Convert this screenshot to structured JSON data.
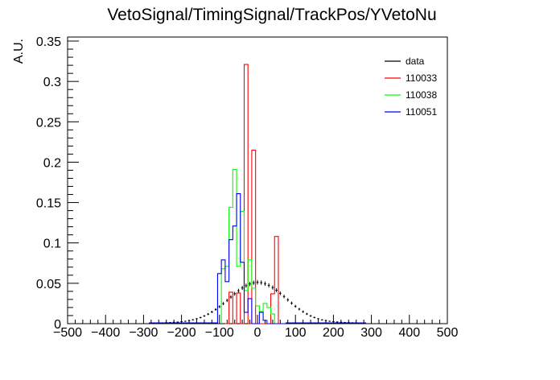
{
  "chart_data": {
    "type": "histogram",
    "title": "VetoSignal/TimingSignal/TrackPos/YVetoNu",
    "xlabel": "",
    "ylabel": "A.U.",
    "xlim": [
      -500,
      500
    ],
    "ylim": [
      0,
      0.355
    ],
    "bin_width": 10,
    "x_ticks": [
      -500,
      -400,
      -300,
      -200,
      -100,
      0,
      100,
      200,
      300,
      400,
      500
    ],
    "x_tick_labels": [
      "−500",
      "−400",
      "−300",
      "−200",
      "−100",
      "0",
      "100",
      "200",
      "300",
      "400",
      "500"
    ],
    "y_ticks": [
      0,
      0.05,
      0.1,
      0.15,
      0.2,
      0.25,
      0.3,
      0.35
    ],
    "y_tick_labels": [
      "0",
      "0.05",
      "0.1",
      "0.15",
      "0.2",
      "0.25",
      "0.3",
      "0.35"
    ],
    "legend_position": "top-right",
    "series": [
      {
        "name": "data",
        "color": "#000000",
        "style": "error-bars",
        "x": [
          -270,
          -260,
          -250,
          -240,
          -230,
          -220,
          -210,
          -200,
          -190,
          -180,
          -170,
          -160,
          -150,
          -140,
          -130,
          -120,
          -110,
          -100,
          -90,
          -80,
          -70,
          -60,
          -50,
          -40,
          -30,
          -20,
          -10,
          0,
          10,
          20,
          30,
          40,
          50,
          60,
          70,
          80,
          90,
          100,
          110,
          120,
          130,
          140,
          150,
          160,
          170,
          180,
          190,
          200,
          210,
          220,
          230,
          240,
          250,
          260,
          270
        ],
        "y": [
          0.0008,
          0.0009,
          0.001,
          0.0012,
          0.0014,
          0.0017,
          0.002,
          0.0025,
          0.003,
          0.0038,
          0.0048,
          0.006,
          0.0075,
          0.0095,
          0.0118,
          0.0145,
          0.0175,
          0.021,
          0.0248,
          0.0288,
          0.033,
          0.037,
          0.0408,
          0.0442,
          0.047,
          0.0492,
          0.0506,
          0.0512,
          0.0508,
          0.0495,
          0.0474,
          0.0447,
          0.0414,
          0.0376,
          0.0336,
          0.0295,
          0.0254,
          0.0215,
          0.018,
          0.0148,
          0.012,
          0.0096,
          0.0076,
          0.006,
          0.0047,
          0.0037,
          0.003,
          0.0025,
          0.0021,
          0.0018,
          0.0015,
          0.0013,
          0.0011,
          0.001,
          0.0009
        ]
      },
      {
        "name": "110033",
        "color": "#ff0000",
        "style": "step",
        "x": [
          -80,
          -70,
          -60,
          -50,
          -40,
          -30,
          -20,
          -10,
          0,
          10,
          20,
          30,
          40,
          50,
          60,
          70
        ],
        "y": [
          0.0,
          0.039,
          0.0,
          0.038,
          0.0,
          0.321,
          0.0,
          0.215,
          0.0,
          0.0,
          0.0,
          0.0,
          0.037,
          0.108,
          0.0,
          0.0
        ]
      },
      {
        "name": "110038",
        "color": "#00ff00",
        "style": "step",
        "x": [
          -90,
          -80,
          -70,
          -60,
          -50,
          -40,
          -30,
          -20,
          -10,
          0,
          10,
          20,
          30,
          40,
          50,
          60,
          70
        ],
        "y": [
          0.068,
          0.071,
          0.144,
          0.191,
          0.071,
          0.139,
          0.041,
          0.079,
          0.044,
          0.022,
          0.015,
          0.025,
          0.02,
          0.012,
          0.0,
          0.0,
          0.0
        ]
      },
      {
        "name": "110051",
        "color": "#0000ff",
        "style": "step",
        "x": [
          -280,
          -270,
          -260,
          -250,
          -240,
          -230,
          -220,
          -210,
          -200,
          -190,
          -180,
          -170,
          -160,
          -150,
          -140,
          -130,
          -120,
          -110,
          -100,
          -90,
          -80,
          -70,
          -60,
          -50,
          -40,
          -30,
          -20,
          -10,
          0,
          10,
          20,
          30,
          40,
          50,
          60,
          70,
          80,
          90,
          100,
          110,
          120,
          130,
          140,
          150,
          160,
          170,
          180,
          190,
          200,
          210,
          220,
          230,
          240,
          250,
          260,
          270,
          280
        ],
        "y": [
          0.001,
          0.001,
          0.001,
          0.001,
          0.001,
          0.001,
          0.001,
          0.001,
          0.001,
          0.001,
          0.001,
          0.001,
          0.001,
          0.001,
          0.001,
          0.001,
          0.001,
          0.001,
          0.062,
          0.079,
          0.052,
          0.104,
          0.121,
          0.161,
          0.076,
          0.014,
          0.031,
          0.0,
          0.0,
          0.014,
          0.004,
          0.0,
          0.0,
          0.0,
          0.0,
          0.0,
          0.001,
          0.001,
          0.001,
          0.001,
          0.001,
          0.001,
          0.001,
          0.001,
          0.001,
          0.001,
          0.001,
          0.001,
          0.001,
          0.001,
          0.001,
          0.001,
          0.001,
          0.001,
          0.001,
          0.001,
          0.001
        ]
      }
    ]
  }
}
